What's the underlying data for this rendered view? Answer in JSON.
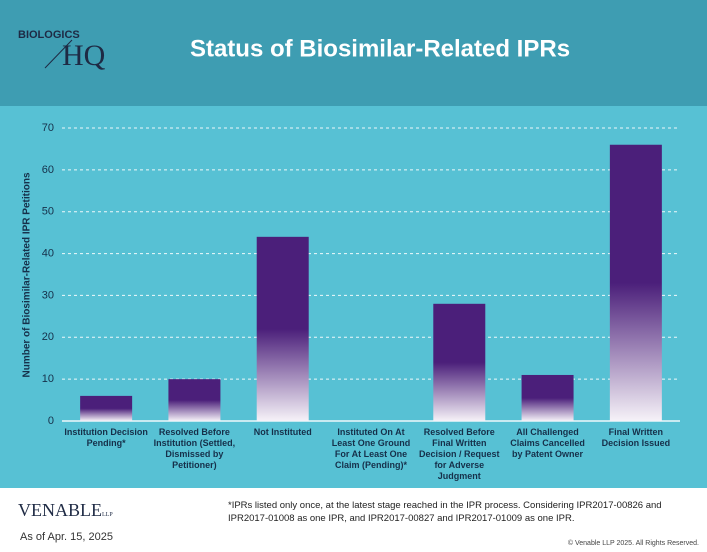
{
  "header": {
    "logo_top": "BIOLOGICS",
    "logo_main": "HQ"
  },
  "chart_data": {
    "type": "bar",
    "title": "Status of Biosimilar-Related IPRs",
    "y_label": "Number of Biosimilar-Related IPR Petitions",
    "categories": [
      "Institution Decision Pending*",
      "Resolved Before Institution (Settled, Dismissed by Petitioner)",
      "Not Instituted",
      "Instituted On At Least One Ground For At Least One Claim (Pending)*",
      "Resolved Before Final Written Decision / Request for Adverse Judgment",
      "All Challenged Claims Cancelled by Patent Owner",
      "Final Written Decision Issued"
    ],
    "values": [
      6,
      10,
      44,
      0,
      28,
      11,
      66
    ],
    "color": "#4b1f7a",
    "ylim": [
      0,
      70
    ],
    "yticks": [
      0,
      10,
      20,
      30,
      40,
      50,
      60,
      70
    ],
    "grid": true
  },
  "footer": {
    "logo": "VENABLE",
    "logo_suffix": "LLP",
    "date": "As of Apr. 15, 2025",
    "note": "*IPRs listed only once, at the latest stage reached in the IPR process.  Considering IPR2017-00826 and IPR2017-01008 as one IPR, and IPR2017-00827 and IPR2017-01009 as one IPR.",
    "copyright": "© Venable LLP 2025. All Rights Reserved."
  }
}
